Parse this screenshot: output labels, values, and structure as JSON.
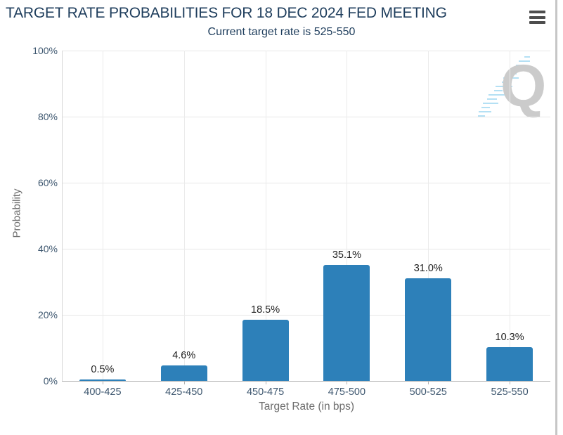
{
  "header": {
    "title": "TARGET RATE PROBABILITIES FOR 18 DEC 2024 FED MEETING",
    "subtitle": "Current target rate is 525-550",
    "menu_icon": "hamburger-menu-icon"
  },
  "watermark": {
    "letter": "Q"
  },
  "colors": {
    "bar": "#2d80b9",
    "title_text": "#1e3d5c",
    "tick_label": "#3f5870",
    "axis_title": "#6e6e6e",
    "value_label": "#1f1f1f",
    "gridline": "#e7e7e7",
    "axis_line": "#b3b3b3",
    "watermark_gray": "#cbcbcb",
    "watermark_blue": "#b4e0f4",
    "menu_icon_color": "#4d4d4d",
    "scrollbar": "#c6c6c6"
  },
  "chart_data": {
    "type": "bar",
    "title": "TARGET RATE PROBABILITIES FOR 18 DEC 2024 FED MEETING",
    "subtitle": "Current target rate is 525-550",
    "categories": [
      "400-425",
      "425-450",
      "450-475",
      "475-500",
      "500-525",
      "525-550"
    ],
    "values": [
      0.5,
      4.6,
      18.5,
      35.1,
      31.0,
      10.3
    ],
    "value_labels": [
      "0.5%",
      "4.6%",
      "18.5%",
      "35.1%",
      "31.0%",
      "10.3%"
    ],
    "xlabel": "Target Rate (in bps)",
    "ylabel": "Probability",
    "ylim": [
      0,
      100
    ],
    "yticks": [
      0,
      20,
      40,
      60,
      80,
      100
    ],
    "ytick_labels": [
      "0%",
      "20%",
      "40%",
      "60%",
      "80%",
      "100%"
    ],
    "grid": true,
    "legend": false,
    "bar_color": "#2d80b9"
  }
}
